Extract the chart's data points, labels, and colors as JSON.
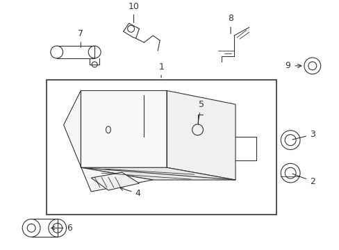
{
  "bg_color": "#ffffff",
  "line_color": "#333333",
  "fig_width": 4.89,
  "fig_height": 3.6,
  "dpi": 100,
  "fontsize": 9
}
